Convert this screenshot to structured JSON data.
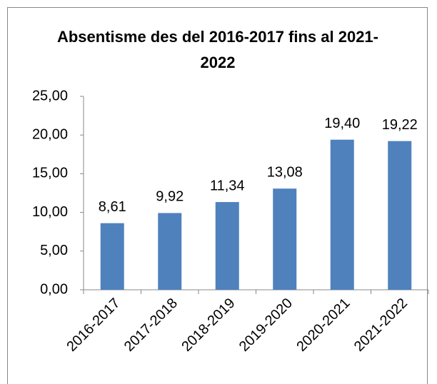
{
  "chart_data": {
    "type": "bar",
    "title": "Absentisme des del 2016-2017 fins al 2021-2022",
    "categories": [
      "2016-2017",
      "2017-2018",
      "2018-2019",
      "2019-2020",
      "2020-2021",
      "2021-2022"
    ],
    "values": [
      8.61,
      9.92,
      11.34,
      13.08,
      19.4,
      19.22
    ],
    "value_labels": [
      "8,61",
      "9,92",
      "11,34",
      "13,08",
      "19,40",
      "19,22"
    ],
    "color": "#4f81bd",
    "ylim": [
      0,
      25
    ],
    "yticks": [
      {
        "value": 0,
        "label": "0,00"
      },
      {
        "value": 5,
        "label": "5,00"
      },
      {
        "value": 10,
        "label": "10,00"
      },
      {
        "value": 15,
        "label": "15,00"
      },
      {
        "value": 20,
        "label": "20,00"
      },
      {
        "value": 25,
        "label": "25,00"
      }
    ],
    "grid": false
  }
}
